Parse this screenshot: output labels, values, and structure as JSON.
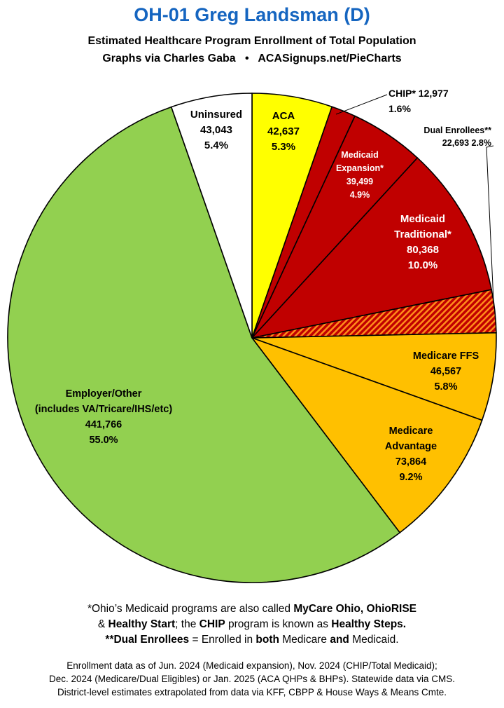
{
  "title": "OH-01 Greg Landsman (D)",
  "subtitle1": "Estimated Healthcare Program Enrollment of Total Population",
  "subtitle2": "Graphs via Charles Gaba   •   ACASignups.net/PieCharts",
  "colors": {
    "aca": "#ffff00",
    "chip": "#c00000",
    "medicaid": "#c00000",
    "dual": "#c00000",
    "medicare": "#ffc000",
    "employer": "#92d050",
    "uninsured": "#ffffff",
    "title": "#1565c0"
  },
  "chart_data": {
    "type": "pie",
    "start": "12 o'clock, clockwise",
    "slices": [
      {
        "id": "aca",
        "label": [
          "ACA"
        ],
        "value": 42637,
        "value_text": "42,637",
        "pct": "5.3%",
        "color": "#ffff00",
        "pattern": "none"
      },
      {
        "id": "chip",
        "label": [
          "CHIP* 12,977",
          "1.6%"
        ],
        "value": 12977,
        "value_text": "12,977",
        "pct": "1.6%",
        "color": "#c00000",
        "pattern": "none"
      },
      {
        "id": "medicaid-expansion",
        "label": [
          "Medicaid",
          "Expansion*"
        ],
        "value": 39499,
        "value_text": "39,499",
        "pct": "4.9%",
        "color": "#c00000",
        "pattern": "none"
      },
      {
        "id": "medicaid-traditional",
        "label": [
          "Medicaid",
          "Traditional*"
        ],
        "value": 80368,
        "value_text": "80,368",
        "pct": "10.0%",
        "color": "#c00000",
        "pattern": "none"
      },
      {
        "id": "dual-enrollees",
        "label": [
          "Dual Enrollees**",
          "22,693 2.8%"
        ],
        "value": 22693,
        "value_text": "22,693",
        "pct": "2.8%",
        "color": "#c00000",
        "pattern": "hatch-orange"
      },
      {
        "id": "medicare-ffs",
        "label": [
          "Medicare FFS"
        ],
        "value": 46567,
        "value_text": "46,567",
        "pct": "5.8%",
        "color": "#ffc000",
        "pattern": "none"
      },
      {
        "id": "medicare-advantage",
        "label": [
          "Medicare",
          "Advantage"
        ],
        "value": 73864,
        "value_text": "73,864",
        "pct": "9.2%",
        "color": "#ffc000",
        "pattern": "none"
      },
      {
        "id": "employer-other",
        "label": [
          "Employer/Other",
          "(includes VA/Tricare/IHS/etc)"
        ],
        "value": 441766,
        "value_text": "441,766",
        "pct": "55.0%",
        "color": "#92d050",
        "pattern": "none"
      },
      {
        "id": "uninsured",
        "label": [
          "Uninsured"
        ],
        "value": 43043,
        "value_text": "43,043",
        "pct": "5.4%",
        "color": "#ffffff",
        "pattern": "none"
      }
    ]
  },
  "notes": {
    "line1_a": "*Ohio’s Medicaid programs are also called ",
    "line1_b": "MyCare Ohio, OhioRISE",
    "line2_a": "& ",
    "line2_b": "Healthy Start",
    "line2_c": "; the ",
    "line2_d": "CHIP",
    "line2_e": " program is known as ",
    "line2_f": "Healthy Steps.",
    "line3_a": "**Dual Enrollees",
    "line3_b": " = Enrolled in ",
    "line3_c": "both",
    "line3_d": " Medicare ",
    "line3_e": "and",
    "line3_f": " Medicaid."
  },
  "source": {
    "line1": "Enrollment data as of Jun. 2024 (Medicaid expansion), Nov. 2024 (CHIP/Total Medicaid);",
    "line2": "Dec. 2024 (Medicare/Dual Eligibles) or Jan. 2025 (ACA QHPs & BHPs). Statewide data via CMS.",
    "line3": "District-level estimates extrapolated from data via KFF, CBPP & House Ways & Means Cmte."
  }
}
